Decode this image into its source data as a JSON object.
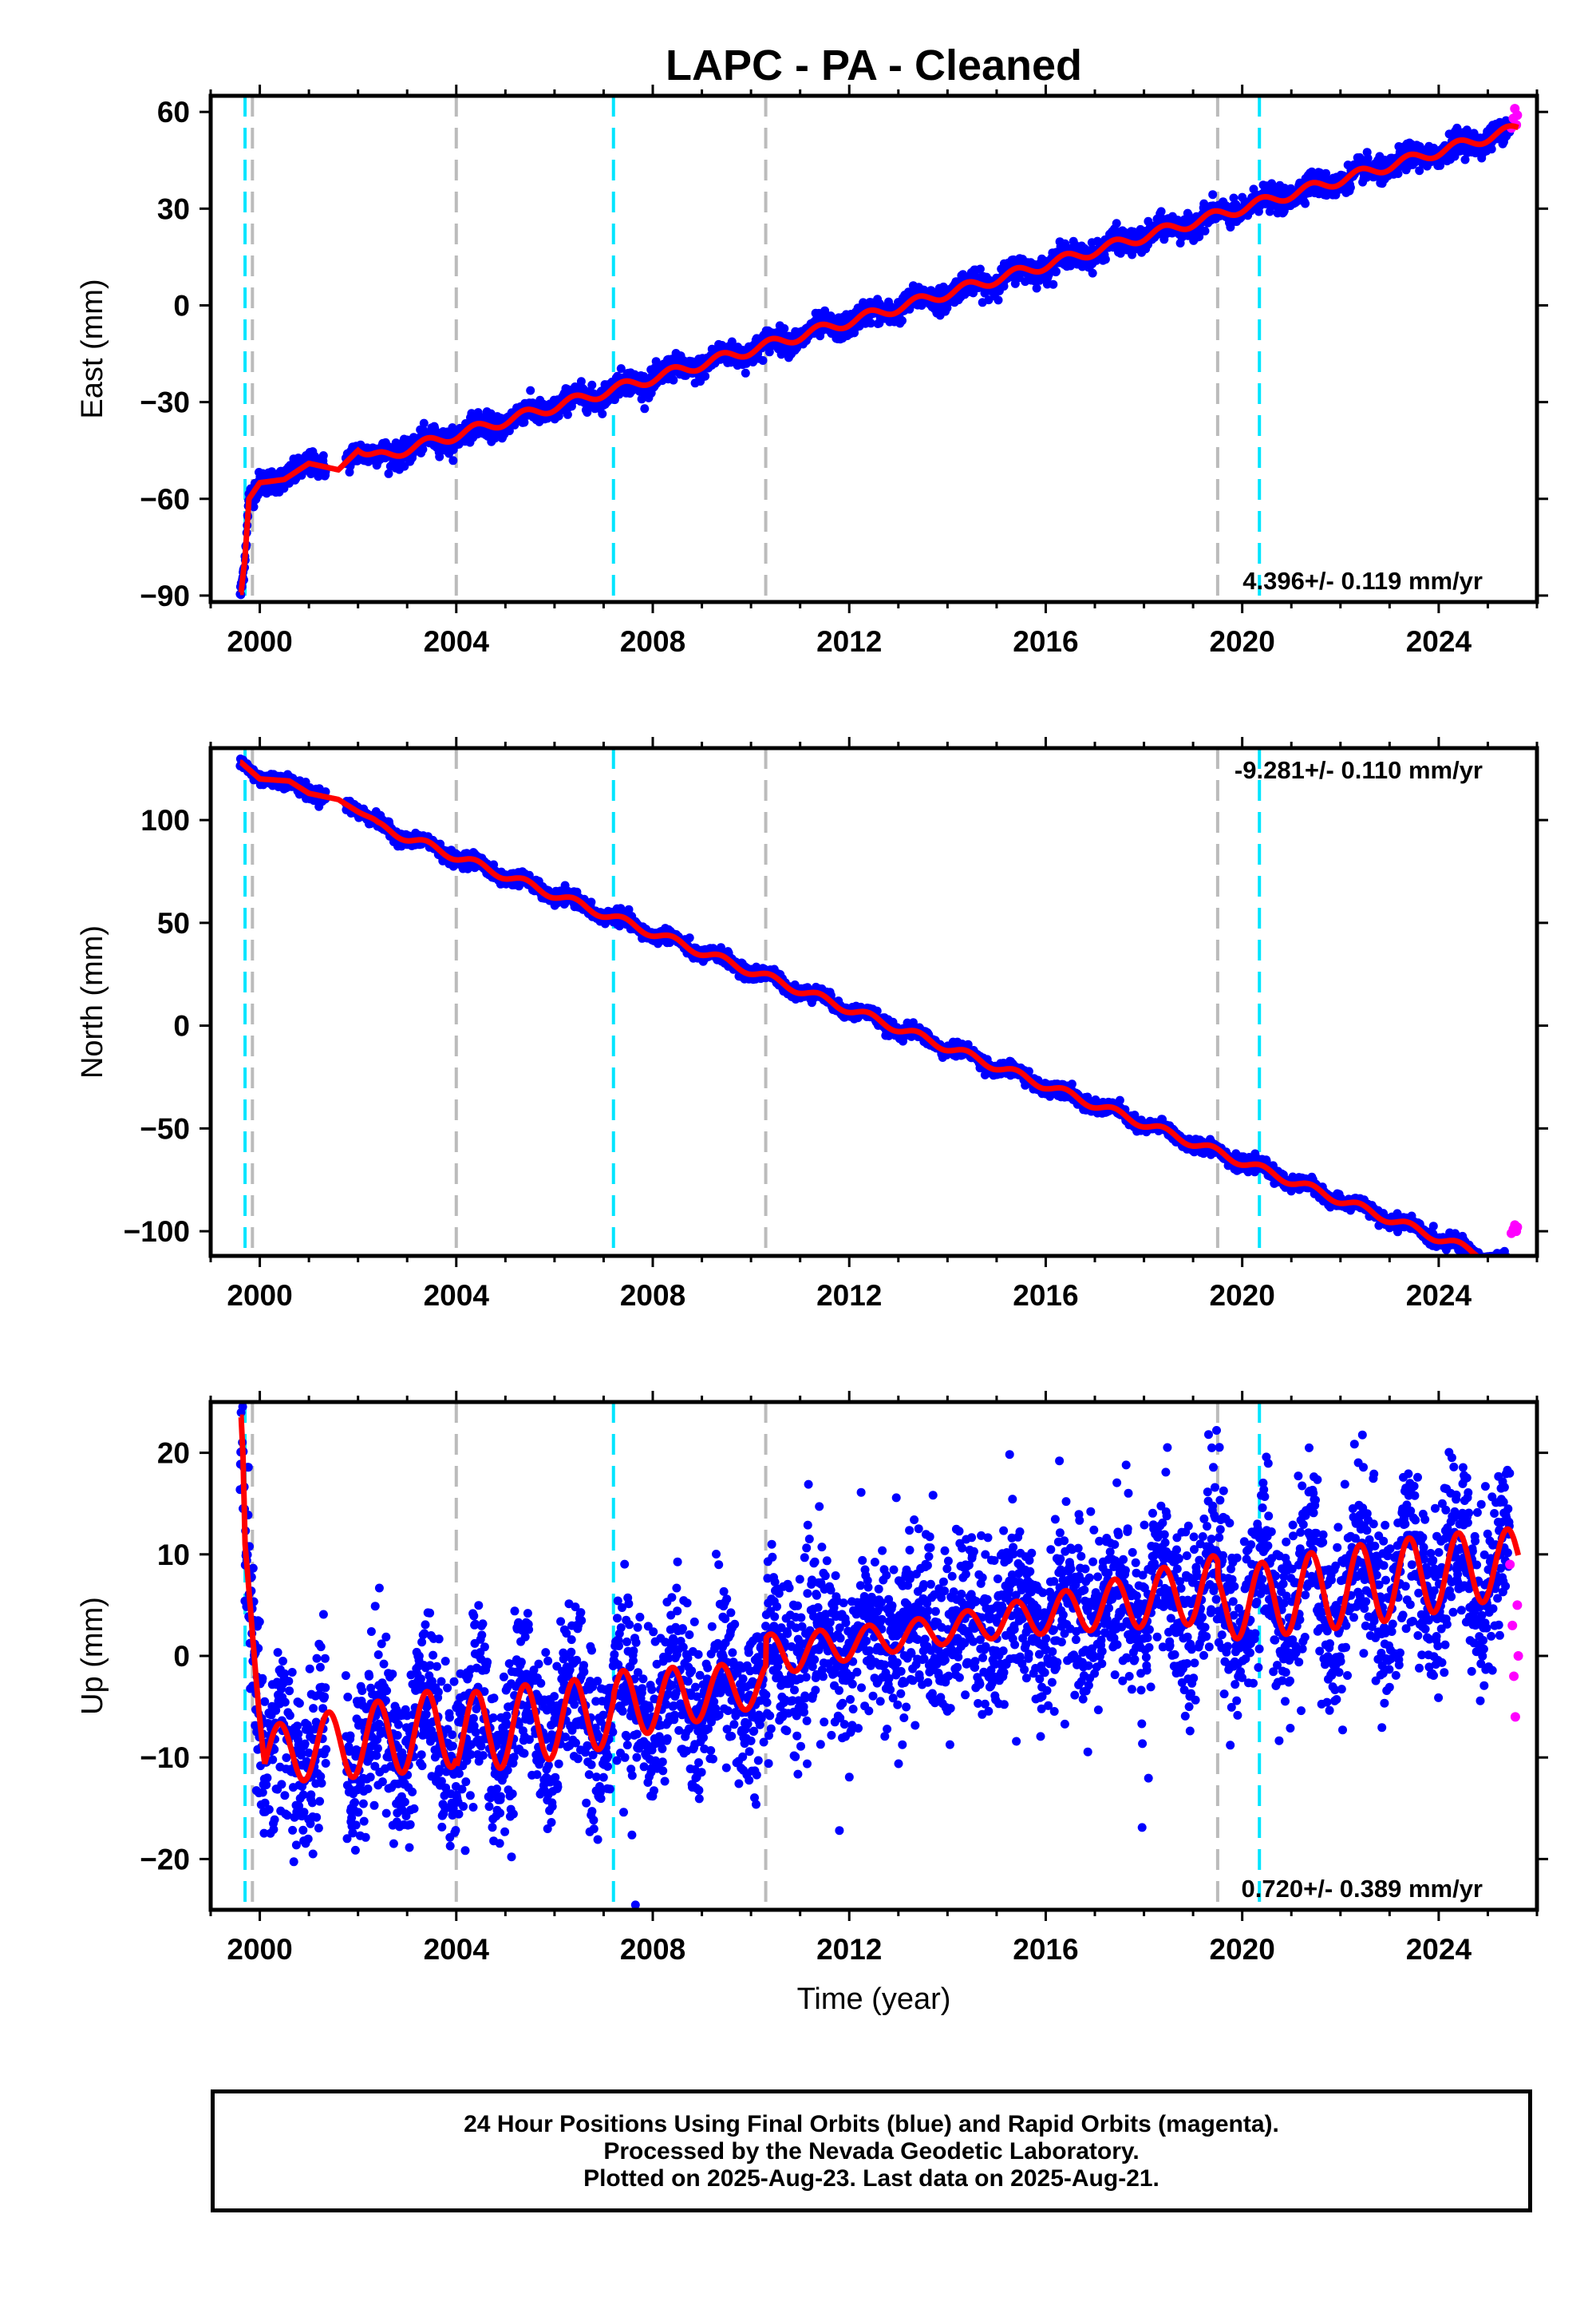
{
  "chart_data": {
    "type": "scatter",
    "title": "LAPC  - PA - Cleaned",
    "x_range": [
      1999.0,
      2026.0
    ],
    "x_ticks": [
      2000,
      2004,
      2008,
      2012,
      2016,
      2020,
      2024
    ],
    "xlabel": "Time (year)",
    "cyan_event_lines": [
      1999.7,
      2007.2,
      2020.35
    ],
    "gray_event_lines": [
      1999.85,
      2004.0,
      2010.3,
      2019.5
    ],
    "colors": {
      "final_orbits": "#0000ff",
      "rapid_orbits": "#ff00ff",
      "model": "#ff0000",
      "cyan_line": "#00e5ff",
      "gray_line": "#bbbbbb"
    },
    "panels": [
      {
        "name": "East",
        "ylabel": "East (mm)",
        "ylim": [
          -92,
          65
        ],
        "y_ticks": [
          -90,
          -60,
          -30,
          0,
          30,
          60
        ],
        "y_tick_labels": [
          "−90",
          "−60",
          "−30",
          "0",
          "30",
          "60"
        ],
        "rate_text": "4.396+/- 0.119 mm/yr",
        "rate_position": "bottom-right",
        "trend": {
          "t0": 2012.0,
          "v0": -5.0,
          "rate": 4.396
        },
        "seasonal_amplitude": 1.6,
        "scatter_noise": 1.8,
        "anchor_points": [
          {
            "x": 1999.62,
            "y": -89
          },
          {
            "x": 1999.7,
            "y": -78
          },
          {
            "x": 1999.78,
            "y": -60
          },
          {
            "x": 2000.0,
            "y": -55
          },
          {
            "x": 2000.5,
            "y": -54
          },
          {
            "x": 2001.0,
            "y": -49
          },
          {
            "x": 2001.6,
            "y": -51
          },
          {
            "x": 2002.0,
            "y": -45
          }
        ],
        "rapid_points": [
          {
            "x": 2025.48,
            "y": 55
          },
          {
            "x": 2025.52,
            "y": 58
          },
          {
            "x": 2025.55,
            "y": 61
          },
          {
            "x": 2025.58,
            "y": 56
          },
          {
            "x": 2025.6,
            "y": 59
          }
        ]
      },
      {
        "name": "North",
        "ylabel": "North (mm)",
        "ylim": [
          -112,
          135
        ],
        "y_ticks": [
          -100,
          -50,
          0,
          50,
          100
        ],
        "y_tick_labels": [
          "−100",
          "−50",
          "0",
          "50",
          "100"
        ],
        "rate_text": "-9.281+/- 0.110 mm/yr",
        "rate_position": "top-right",
        "trend": {
          "t0": 2012.0,
          "v0": 8.0,
          "rate": -9.281
        },
        "seasonal_amplitude": 2.0,
        "scatter_noise": 1.6,
        "anchor_points": [
          {
            "x": 1999.62,
            "y": 128
          },
          {
            "x": 2000.0,
            "y": 120
          },
          {
            "x": 2000.6,
            "y": 119
          },
          {
            "x": 2001.0,
            "y": 113
          },
          {
            "x": 2001.6,
            "y": 110
          },
          {
            "x": 2002.0,
            "y": 104
          }
        ],
        "rapid_points": [
          {
            "x": 2025.48,
            "y": -101
          },
          {
            "x": 2025.52,
            "y": -99
          },
          {
            "x": 2025.55,
            "y": -97
          },
          {
            "x": 2025.58,
            "y": -100
          },
          {
            "x": 2025.6,
            "y": -98
          }
        ]
      },
      {
        "name": "Up",
        "ylabel": "Up (mm)",
        "ylim": [
          -25,
          25
        ],
        "y_ticks": [
          -20,
          -10,
          0,
          10,
          20
        ],
        "y_tick_labels": [
          "−20",
          "−10",
          "0",
          "10",
          "20"
        ],
        "rate_text": "0.720+/- 0.389 mm/yr",
        "rate_position": "bottom-right",
        "trend": {
          "t0": 2012.0,
          "v0": 0.0,
          "rate": 0.72
        },
        "seasonal_amplitude": 3.6,
        "scatter_noise": 4.2,
        "segment_offsets": [
          {
            "from": 1999.0,
            "to": 2004.0,
            "offset": -1.2
          },
          {
            "from": 2004.0,
            "to": 2007.2,
            "offset": -2.0
          },
          {
            "from": 2007.2,
            "to": 2010.3,
            "offset": -1.5
          },
          {
            "from": 2010.3,
            "to": 2019.5,
            "offset": 1.2
          },
          {
            "from": 2019.5,
            "to": 2026.0,
            "offset": -0.5
          }
        ],
        "anchor_points": [
          {
            "x": 1999.62,
            "y": 23.5
          },
          {
            "x": 1999.66,
            "y": 19.5
          },
          {
            "x": 1999.7,
            "y": 11
          }
        ],
        "rapid_points": [
          {
            "x": 2025.45,
            "y": 9
          },
          {
            "x": 2025.5,
            "y": 3
          },
          {
            "x": 2025.53,
            "y": -2
          },
          {
            "x": 2025.56,
            "y": -6
          },
          {
            "x": 2025.6,
            "y": 5
          },
          {
            "x": 2025.62,
            "y": 0
          }
        ]
      }
    ]
  },
  "footer": {
    "line1": "24 Hour Positions Using Final Orbits (blue) and Rapid Orbits (magenta).",
    "line2": "Processed by the Nevada Geodetic Laboratory.",
    "line3": "Plotted on 2025-Aug-23. Last data on 2025-Aug-21."
  }
}
